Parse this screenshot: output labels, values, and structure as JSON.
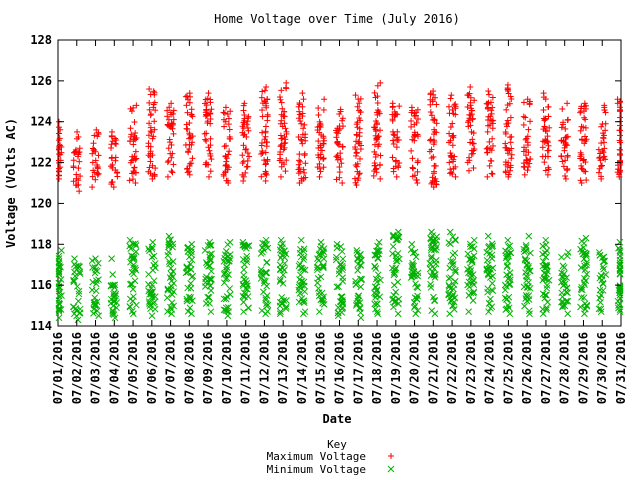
{
  "chart_data": {
    "type": "scatter",
    "title": "Home Voltage over Time (July 2016)",
    "xlabel": "Date",
    "ylabel": "Voltage (Volts AC)",
    "ylim": [
      114,
      128
    ],
    "yticks": [
      "114",
      "116",
      "118",
      "120",
      "122",
      "124",
      "126",
      "128"
    ],
    "grid": false,
    "legend_position": "bottom-center",
    "legend_title": "Key",
    "categories": [
      "07/01/2016",
      "07/02/2016",
      "07/03/2016",
      "07/04/2016",
      "07/05/2016",
      "07/06/2016",
      "07/07/2016",
      "07/08/2016",
      "07/09/2016",
      "07/10/2016",
      "07/11/2016",
      "07/12/2016",
      "07/13/2016",
      "07/14/2016",
      "07/15/2016",
      "07/16/2016",
      "07/17/2016",
      "07/18/2016",
      "07/19/2016",
      "07/20/2016",
      "07/21/2016",
      "07/22/2016",
      "07/23/2016",
      "07/24/2016",
      "07/25/2016",
      "07/26/2016",
      "07/27/2016",
      "07/28/2016",
      "07/29/2016",
      "07/30/2016",
      "07/31/2016"
    ],
    "series": [
      {
        "name": "Maximum Voltage",
        "marker": "plus",
        "color": "#ff0000",
        "low": [
          121.2,
          120.6,
          120.8,
          120.8,
          121.0,
          121.2,
          121.3,
          121.4,
          121.3,
          121.0,
          121.1,
          121.1,
          121.3,
          121.0,
          121.3,
          121.0,
          120.9,
          121.2,
          121.3,
          121.0,
          120.8,
          121.3,
          121.6,
          121.3,
          121.3,
          121.4,
          121.4,
          121.2,
          121.0,
          121.2,
          121.3
        ],
        "high": [
          124.0,
          123.5,
          123.6,
          123.5,
          124.8,
          125.6,
          124.9,
          125.4,
          125.4,
          124.7,
          124.9,
          125.7,
          125.9,
          125.4,
          125.1,
          124.6,
          125.3,
          125.9,
          124.9,
          124.7,
          125.5,
          125.3,
          125.7,
          125.5,
          125.8,
          125.1,
          125.4,
          124.9,
          124.9,
          124.8,
          125.1
        ]
      },
      {
        "name": "Minimum Voltage",
        "marker": "cross",
        "color": "#00b000",
        "low": [
          114.4,
          114.3,
          114.5,
          114.4,
          114.6,
          114.5,
          114.6,
          114.6,
          114.7,
          114.5,
          114.7,
          114.6,
          114.6,
          114.6,
          114.7,
          114.5,
          114.4,
          114.6,
          114.6,
          114.6,
          114.6,
          114.6,
          114.7,
          114.7,
          114.6,
          114.6,
          114.6,
          114.6,
          114.6,
          114.7,
          114.7
        ],
        "high": [
          117.7,
          117.3,
          117.3,
          117.3,
          118.2,
          118.1,
          118.4,
          118.0,
          118.1,
          118.1,
          118.1,
          118.2,
          118.2,
          118.2,
          118.1,
          118.0,
          117.7,
          118.1,
          118.6,
          118.0,
          118.6,
          118.6,
          118.2,
          118.4,
          118.2,
          118.4,
          118.2,
          117.6,
          118.3,
          117.6,
          118.1
        ]
      }
    ]
  }
}
